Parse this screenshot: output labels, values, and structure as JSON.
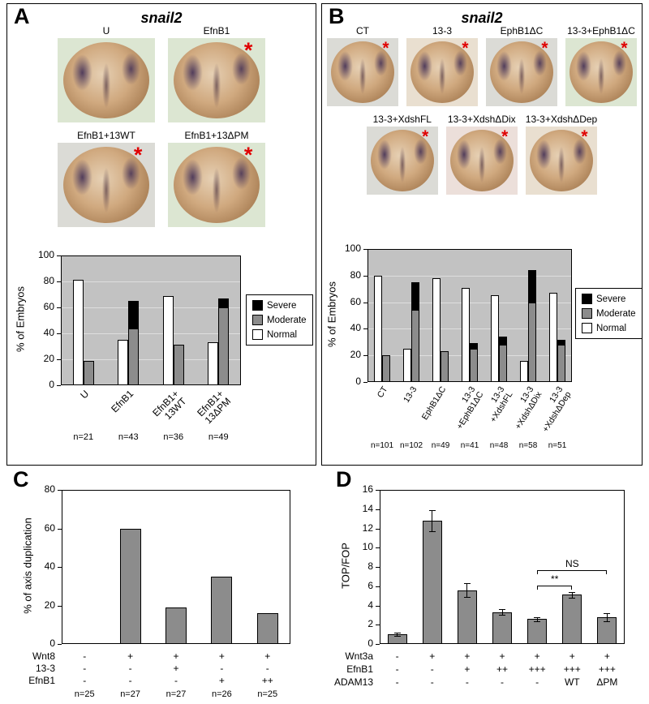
{
  "marker": "*",
  "panels": {
    "A": {
      "label": "A",
      "title": "snail2",
      "images": [
        {
          "label": "U",
          "asterisk": false,
          "tint": "green"
        },
        {
          "label": "EfnB1",
          "asterisk": true,
          "tint": "green"
        },
        {
          "label": "EfnB1+13WT",
          "asterisk": true,
          "tint": "gray"
        },
        {
          "label": "EfnB1+13ΔPM",
          "asterisk": true,
          "tint": "green"
        }
      ]
    },
    "B": {
      "label": "B",
      "title": "snail2",
      "images": [
        {
          "label": "CT",
          "asterisk": true,
          "tint": "gray"
        },
        {
          "label": "13-3",
          "asterisk": true,
          "tint": "tan"
        },
        {
          "label": "EphB1ΔC",
          "asterisk": true,
          "tint": "gray"
        },
        {
          "label": "13-3+EphB1ΔC",
          "asterisk": true,
          "tint": "green"
        },
        {
          "label": "13-3+XdshFL",
          "asterisk": true,
          "tint": "gray"
        },
        {
          "label": "13-3+XdshΔDix",
          "asterisk": true,
          "tint": "pink"
        },
        {
          "label": "13-3+XdshΔDep",
          "asterisk": true,
          "tint": "tan"
        }
      ]
    },
    "C": {
      "label": "C"
    },
    "D": {
      "label": "D"
    }
  },
  "chart_data": [
    {
      "id": "A",
      "type": "bar",
      "variant": "grouped-stacked",
      "ylabel": "% of Embryos",
      "ylim": [
        0,
        100
      ],
      "yticks": [
        0,
        20,
        40,
        60,
        80,
        100
      ],
      "categories": [
        "U",
        "EfnB1",
        "EfnB1+\n13WT",
        "EfnB1+\n13ΔPM"
      ],
      "series": [
        {
          "name": "Normal",
          "color": "#ffffff",
          "values": [
            81,
            35,
            69,
            33
          ]
        },
        {
          "name": "Moderate",
          "color": "#8c8c8c",
          "values": [
            19,
            44,
            31,
            60
          ]
        },
        {
          "name": "Severe",
          "color": "#000000",
          "values": [
            0,
            21,
            0,
            7
          ]
        }
      ],
      "legend": [
        "Severe",
        "Moderate",
        "Normal"
      ],
      "legend_position": "right",
      "grid": true,
      "n_values": [
        "n=21",
        "n=43",
        "n=36",
        "n=49"
      ]
    },
    {
      "id": "B",
      "type": "bar",
      "variant": "grouped-stacked",
      "ylabel": "% of Embryos",
      "ylim": [
        0,
        100
      ],
      "yticks": [
        0,
        20,
        40,
        60,
        80,
        100
      ],
      "categories": [
        "CT",
        "13-3",
        "EphB1ΔC",
        "13-3\n+EphB1ΔC",
        "13-3\n+XdshFL",
        "13-3\n+XdshΔDix",
        "13-3\n+XdshΔDep"
      ],
      "series": [
        {
          "name": "Normal",
          "color": "#ffffff",
          "values": [
            80,
            25,
            78,
            71,
            65,
            16,
            67
          ]
        },
        {
          "name": "Moderate",
          "color": "#8c8c8c",
          "values": [
            20,
            54,
            23,
            25,
            28,
            60,
            28
          ]
        },
        {
          "name": "Severe",
          "color": "#000000",
          "values": [
            0,
            21,
            0,
            4,
            6,
            24,
            4
          ]
        }
      ],
      "legend": [
        "Severe",
        "Moderate",
        "Normal"
      ],
      "legend_position": "right",
      "grid": true,
      "n_values": [
        "n=101",
        "n=102",
        "n=49",
        "n=41",
        "n=48",
        "n=58",
        "n=51"
      ]
    },
    {
      "id": "C",
      "type": "bar",
      "ylabel": "% of axis duplication",
      "ylim": [
        0,
        80
      ],
      "yticks": [
        0,
        20,
        40,
        60,
        80
      ],
      "values": [
        0,
        60,
        19,
        35,
        16
      ],
      "bar_color": "#8c8c8c",
      "grid": false,
      "x_table": {
        "rows": [
          {
            "label": "Wnt8",
            "values": [
              "-",
              "+",
              "+",
              "+",
              "+"
            ]
          },
          {
            "label": "13-3",
            "values": [
              "-",
              "-",
              "+",
              "-",
              "-"
            ]
          },
          {
            "label": "EfnB1",
            "values": [
              "-",
              "-",
              "-",
              "+",
              "++"
            ]
          }
        ],
        "n_row": [
          "n=25",
          "n=27",
          "n=27",
          "n=26",
          "n=25"
        ]
      }
    },
    {
      "id": "D",
      "type": "bar",
      "ylabel": "TOP/FOP",
      "ylim": [
        0,
        16
      ],
      "yticks": [
        0,
        2,
        4,
        6,
        8,
        10,
        12,
        14,
        16
      ],
      "values": [
        1.0,
        12.8,
        5.6,
        3.3,
        2.6,
        5.1,
        2.8
      ],
      "errors": [
        0.15,
        1.1,
        0.7,
        0.3,
        0.2,
        0.3,
        0.4
      ],
      "bar_color": "#8c8c8c",
      "grid": false,
      "x_table": {
        "rows": [
          {
            "label": "Wnt3a",
            "values": [
              "-",
              "+",
              "+",
              "+",
              "+",
              "+",
              "+"
            ]
          },
          {
            "label": "EfnB1",
            "values": [
              "-",
              "-",
              "+",
              "++",
              "+++",
              "+++",
              "+++"
            ]
          },
          {
            "label": "ADAM13",
            "values": [
              "-",
              "-",
              "-",
              "-",
              "-",
              "WT",
              "ΔPM"
            ]
          }
        ]
      },
      "annotations": [
        {
          "label": "**",
          "from": 4,
          "to": 5,
          "y": 6.1
        },
        {
          "label": "NS",
          "from": 4,
          "to": 6,
          "y": 7.7
        }
      ]
    }
  ]
}
